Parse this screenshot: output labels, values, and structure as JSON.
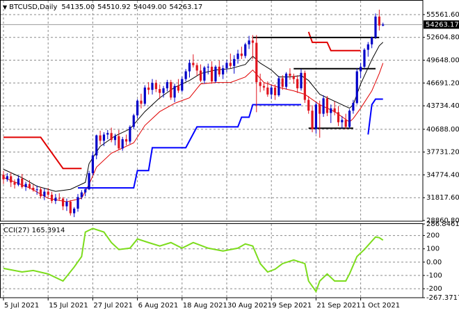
{
  "chart_data": [
    {
      "type": "candlestick",
      "title": "BTCUSD,Daily",
      "header_values": [
        "54135.00",
        "54510.92",
        "54049.00",
        "54263.17"
      ],
      "up_color": "#0000c8",
      "down_color": "#e0141e",
      "open": [
        34800,
        34200,
        34600,
        33800,
        33500,
        34300,
        33200,
        33600,
        33100,
        32800,
        32900,
        32000,
        32600,
        32200,
        31400,
        31800,
        31700,
        30700,
        31300,
        29800,
        30400,
        31900,
        32500,
        32900,
        35000,
        37300,
        39900,
        39200,
        40000,
        40200,
        39300,
        39800,
        38200,
        39400,
        39100,
        41000,
        42500,
        44400,
        44000,
        46100,
        45800,
        46700,
        45900,
        45400,
        46000,
        46800,
        44800,
        46300,
        45700,
        47200,
        48200,
        49300,
        49000,
        48300,
        47000,
        48700,
        48800,
        46900,
        48800,
        47800,
        48600,
        49300,
        48900,
        49800,
        50500,
        50200,
        51700,
        52200,
        51900,
        46800,
        46300,
        46100,
        45200,
        46100,
        45100,
        47300,
        46200,
        47900,
        47600,
        47200,
        46000,
        48000,
        44500,
        43100,
        40700,
        43900,
        42700,
        44700,
        42800,
        43400,
        42900,
        41600,
        41900,
        41000,
        43100,
        44100,
        48200,
        48800,
        51000,
        51700,
        52600,
        55300,
        54135
      ],
      "high": [
        35300,
        35000,
        35100,
        34200,
        34700,
        34900,
        33900,
        34100,
        33500,
        33400,
        33200,
        33000,
        33100,
        32600,
        32300,
        32400,
        31900,
        31700,
        31500,
        30600,
        32300,
        32800,
        33100,
        35300,
        37800,
        40000,
        40500,
        40300,
        40600,
        40900,
        40100,
        40600,
        39700,
        40000,
        41200,
        42700,
        44600,
        45300,
        46400,
        46800,
        47200,
        47100,
        46500,
        46300,
        47100,
        47100,
        46600,
        47200,
        47500,
        48500,
        49700,
        50400,
        49300,
        49100,
        48900,
        49200,
        49500,
        49000,
        49600,
        49000,
        49700,
        50500,
        50300,
        51000,
        51400,
        51900,
        52800,
        52900,
        52900,
        47900,
        46800,
        46900,
        46400,
        46500,
        47600,
        47700,
        48100,
        48600,
        47900,
        47700,
        48500,
        48300,
        45000,
        43800,
        44200,
        44400,
        45100,
        45000,
        43900,
        44300,
        43700,
        42400,
        42700,
        43300,
        44500,
        48600,
        49300,
        51200,
        52000,
        52700,
        55700,
        56200,
        54510.92
      ],
      "low": [
        33600,
        33900,
        33200,
        33000,
        33300,
        33000,
        32700,
        32900,
        32600,
        32200,
        31700,
        31500,
        31900,
        31100,
        31000,
        31400,
        30200,
        30100,
        29500,
        29300,
        30000,
        31600,
        32000,
        32800,
        34700,
        36800,
        38700,
        38500,
        39400,
        39000,
        38600,
        38000,
        37900,
        38600,
        38800,
        40700,
        42100,
        43400,
        43700,
        45200,
        45200,
        45500,
        44600,
        44800,
        45600,
        44500,
        44200,
        45400,
        45500,
        46900,
        47400,
        48700,
        47600,
        46800,
        46600,
        47800,
        46600,
        46700,
        47500,
        47200,
        48100,
        48600,
        47900,
        49200,
        49800,
        49900,
        51100,
        49800,
        42900,
        45500,
        45700,
        44900,
        44600,
        44500,
        44900,
        45800,
        45900,
        47100,
        46600,
        45400,
        45700,
        44100,
        42700,
        40300,
        40100,
        39600,
        42300,
        42400,
        41500,
        42500,
        41100,
        40800,
        40700,
        40800,
        42700,
        43900,
        47300,
        48500,
        50100,
        51200,
        52400,
        53500,
        54049
      ],
      "close": [
        34200,
        34600,
        33800,
        33500,
        34300,
        33200,
        33600,
        33100,
        32800,
        32900,
        32000,
        32600,
        32200,
        31400,
        31800,
        31700,
        30700,
        31300,
        29800,
        30400,
        31900,
        32500,
        32900,
        35000,
        37300,
        39900,
        39200,
        40000,
        40200,
        39300,
        39800,
        38200,
        39400,
        39100,
        41000,
        42500,
        44400,
        44000,
        46100,
        45800,
        46700,
        45900,
        45400,
        46000,
        46800,
        44800,
        46300,
        45700,
        47200,
        48200,
        49300,
        49000,
        48300,
        47000,
        48700,
        48800,
        46900,
        48800,
        47800,
        48600,
        49300,
        48900,
        49800,
        50500,
        50200,
        51700,
        52200,
        51900,
        46800,
        46300,
        46100,
        45200,
        46100,
        45100,
        47300,
        46200,
        47900,
        47600,
        47200,
        46000,
        48000,
        44500,
        43100,
        40700,
        43900,
        42700,
        44700,
        42800,
        43400,
        42900,
        41600,
        41900,
        41000,
        43100,
        44100,
        48200,
        48800,
        51000,
        51700,
        52600,
        55300,
        54135,
        54263.17
      ],
      "last_price": 54263.17,
      "ylim": [
        28771,
        57360
      ],
      "yticks": [
        {
          "value": 55561.6,
          "label": "55561.60"
        },
        {
          "value": 52604.8,
          "label": "52604.80"
        },
        {
          "value": 49648,
          "label": "49648.00"
        },
        {
          "value": 46691.2,
          "label": "46691.20"
        },
        {
          "value": 43734.4,
          "label": "43734.40"
        },
        {
          "value": 40688,
          "label": "40688.00"
        },
        {
          "value": 37731.2,
          "label": "37731.20"
        },
        {
          "value": 34774.4,
          "label": "34774.40"
        },
        {
          "value": 31817.6,
          "label": "31817.60"
        },
        {
          "value": 28860.8,
          "label": "28860.80"
        }
      ],
      "xticks": [
        {
          "value": 0,
          "label": "5 Jul 2021"
        },
        {
          "value": 12,
          "label": "15 Jul 2021"
        },
        {
          "value": 24,
          "label": "27 Jul 2021"
        },
        {
          "value": 36,
          "label": "6 Aug 2021"
        },
        {
          "value": 48,
          "label": "18 Aug 2021"
        },
        {
          "value": 60,
          "label": "30 Aug 2021"
        },
        {
          "value": 72,
          "label": "9 Sep 2021"
        },
        {
          "value": 84,
          "label": "21 Sep 2021"
        },
        {
          "value": 96,
          "label": "1 Oct 2021"
        }
      ],
      "grid": true,
      "series": [
        {
          "color": "#000000",
          "width": 1,
          "x": [
            0,
            5,
            9,
            14,
            18,
            22,
            23,
            26,
            30,
            34,
            38,
            42,
            46,
            50,
            53,
            57,
            61,
            65,
            67,
            69,
            72,
            74,
            77,
            80,
            82,
            85,
            89,
            93,
            94,
            96,
            99,
            101,
            102
          ],
          "values": [
            35500,
            34400,
            33300,
            32640,
            32900,
            33800,
            36230,
            38480,
            39830,
            40730,
            42980,
            44770,
            46120,
            47020,
            47920,
            48370,
            48550,
            49090,
            50170,
            49270,
            48370,
            47470,
            47470,
            47650,
            47020,
            45220,
            44320,
            43420,
            43870,
            46570,
            49720,
            51520,
            51970
          ]
        },
        {
          "color": "#e00000",
          "width": 1,
          "x": [
            0,
            7,
            12,
            17,
            21,
            23,
            25,
            29,
            35,
            38,
            42,
            46,
            50,
            53,
            57,
            61,
            65,
            67,
            70,
            74,
            78,
            81,
            85,
            89,
            93,
            94,
            96,
            99,
            101,
            102
          ],
          "values": [
            34435,
            33090,
            31740,
            31290,
            31740,
            33540,
            35780,
            37580,
            38930,
            41180,
            42980,
            44055,
            44770,
            46570,
            46750,
            46750,
            47470,
            48370,
            46750,
            46120,
            45670,
            45220,
            43875,
            42980,
            41630,
            42080,
            43420,
            45670,
            47920,
            49270
          ]
        },
        {
          "color": "#e00000",
          "width": 2,
          "x": [
            0,
            10,
            16,
            21,
            null,
            82,
            83,
            87,
            88,
            96
          ],
          "values": [
            39650,
            39650,
            35605,
            35605,
            null,
            53315,
            51965,
            51965,
            50890,
            50890
          ]
        },
        {
          "color": "#0000ff",
          "width": 2,
          "x": [
            20,
            35,
            36,
            39,
            40,
            49,
            52,
            63,
            64,
            66,
            67,
            80,
            null,
            98,
            99,
            100,
            102
          ],
          "values": [
            33090,
            33090,
            35335,
            35335,
            38300,
            38300,
            41000,
            41000,
            42258,
            42258,
            43875,
            43875,
            null,
            40010,
            43875,
            44594,
            44594
          ]
        },
        {
          "color": "#000000",
          "width": 2,
          "x": [
            67,
            101
          ],
          "values": [
            52595,
            52595
          ]
        },
        {
          "color": "#000000",
          "width": 2,
          "x": [
            78,
            100
          ],
          "values": [
            48550,
            48550
          ]
        },
        {
          "color": "#000000",
          "width": 2,
          "x": [
            82,
            94
          ],
          "values": [
            40820,
            40820
          ]
        }
      ]
    },
    {
      "type": "line",
      "title": "CCI(27) 165.3914",
      "ylim": [
        -267.3717,
        286.8461
      ],
      "yticks": [
        286.8461,
        200,
        100,
        {
          "value": 0,
          "label": "0.00"
        },
        -100,
        -200,
        -267.3717
      ],
      "grid": true,
      "series": [
        {
          "color": "#7cdc1c",
          "width": 2,
          "x": [
            0,
            5,
            8,
            12,
            16,
            19,
            21,
            22,
            24,
            27,
            29,
            31,
            34,
            36,
            39,
            42,
            45,
            48,
            51,
            55,
            59,
            63,
            65,
            67,
            69,
            71,
            73,
            75,
            78,
            81,
            82,
            84,
            85,
            87,
            89,
            92,
            93,
            95,
            97,
            100,
            101,
            102
          ],
          "values": [
            -47,
            -74,
            -63,
            -89,
            -142,
            -37,
            42,
            226,
            253,
            226,
            147,
            95,
            105,
            174,
            147,
            121,
            147,
            105,
            147,
            105,
            84,
            105,
            137,
            121,
            -11,
            -74,
            -53,
            -11,
            16,
            -11,
            -142,
            -221,
            -142,
            -89,
            -142,
            -142,
            -89,
            42,
            95,
            189,
            184,
            165.3914
          ]
        }
      ]
    }
  ]
}
